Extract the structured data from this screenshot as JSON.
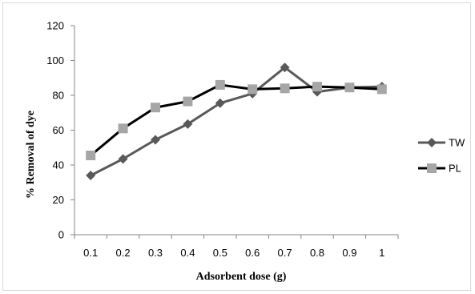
{
  "chart_data": {
    "type": "line",
    "x": [
      "0.1",
      "0.2",
      "0.3",
      "0.4",
      "0.5",
      "0.6",
      "0.7",
      "0.8",
      "0.9",
      "1"
    ],
    "series": [
      {
        "name": "TW",
        "values": [
          34,
          43.5,
          54.5,
          63.5,
          75.5,
          81,
          96,
          82,
          84.5,
          85
        ],
        "color": "#595959",
        "marker": "diamond"
      },
      {
        "name": "PL",
        "values": [
          45.5,
          61,
          73,
          76.5,
          86,
          83.5,
          84,
          85,
          84.5,
          83.5
        ],
        "color": "#000000",
        "marker_color": "#a6a6a6",
        "marker": "square"
      }
    ],
    "xlabel": "Adsorbent dose (g)",
    "ylabel": "% Removal of dye",
    "ylim": [
      0,
      120
    ],
    "yticks": [
      "0",
      "20",
      "40",
      "60",
      "80",
      "100",
      "120"
    ],
    "grid": false,
    "legend_position": "right"
  }
}
